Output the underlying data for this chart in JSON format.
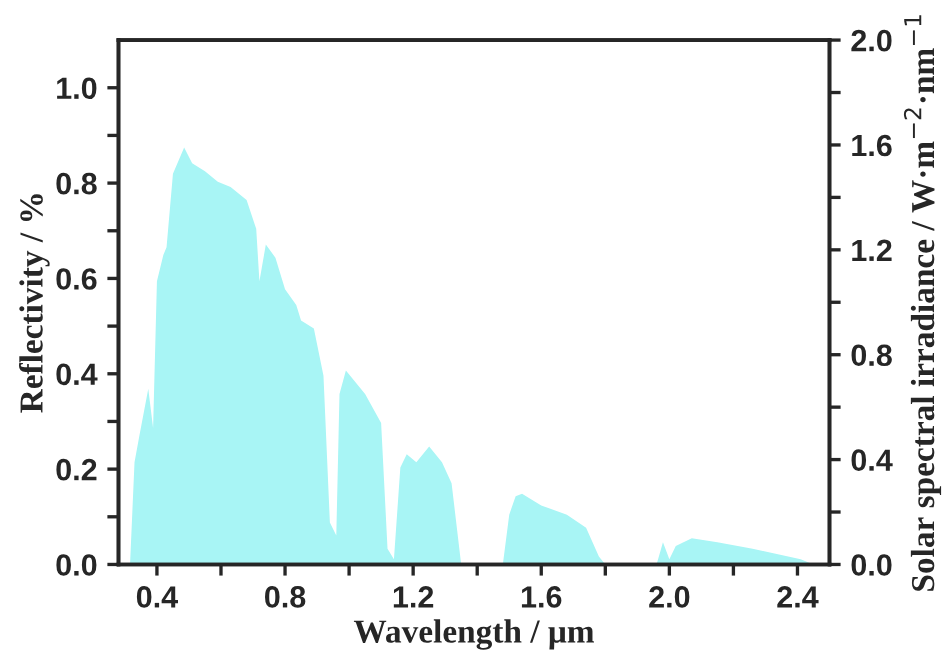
{
  "chart_data": {
    "type": "area",
    "xlabel": "Wavelength / μm",
    "ylabel": "Reflectivity / %",
    "y2label": "Solar spectral irradiance / W·m$^{−2}$·nm$^{−1}$",
    "xlim": [
      0.28,
      2.5
    ],
    "xticks": [
      0.4,
      {
        "value": 0.6,
        "label": null
      },
      0.8,
      {
        "value": 1.0,
        "label": null
      },
      1.2,
      {
        "value": 1.4,
        "label": null
      },
      1.6,
      {
        "value": 1.8,
        "label": null
      },
      {
        "value": 2.0,
        "label": "2.0"
      },
      {
        "value": 2.2,
        "label": null
      },
      2.4
    ],
    "ylim": [
      0,
      1.1
    ],
    "yticks": [
      {
        "value": 0,
        "label": "0.0"
      },
      {
        "value": 0.1,
        "label": null
      },
      0.2,
      {
        "value": 0.3,
        "label": null
      },
      0.4,
      {
        "value": 0.5,
        "label": null
      },
      0.6,
      {
        "value": 0.7,
        "label": null
      },
      0.8,
      {
        "value": 0.9,
        "label": null
      },
      {
        "value": 1,
        "label": "1.0"
      }
    ],
    "y2lim": [
      0,
      2.0
    ],
    "y2ticks": [
      {
        "value": 0,
        "label": "0.0"
      },
      {
        "value": 0.2,
        "label": null
      },
      0.4,
      {
        "value": 0.6,
        "label": null
      },
      0.8,
      {
        "value": 1.0,
        "label": null
      },
      1.2,
      {
        "value": 1.4,
        "label": null
      },
      1.6,
      {
        "value": 1.8,
        "label": null
      },
      {
        "value": 2,
        "label": "2.0"
      }
    ],
    "grid": false,
    "legend": false,
    "series": [
      {
        "color": "#a8f5f5",
        "axis": "y2",
        "x": [
          0.316,
          0.33,
          0.345,
          0.373,
          0.388,
          0.4,
          0.42,
          0.43,
          0.45,
          0.485,
          0.51,
          0.55,
          0.59,
          0.63,
          0.68,
          0.71,
          0.72,
          0.74,
          0.77,
          0.8,
          0.835,
          0.85,
          0.89,
          0.92,
          0.94,
          0.96,
          0.97,
          0.99,
          1.05,
          1.1,
          1.12,
          1.14,
          1.16,
          1.18,
          1.21,
          1.25,
          1.29,
          1.32,
          1.35,
          1.48,
          1.5,
          1.52,
          1.54,
          1.6,
          1.68,
          1.74,
          1.78,
          1.8,
          1.96,
          1.98,
          2.0,
          2.02,
          2.07,
          2.15,
          2.26,
          2.41,
          2.45
        ],
        "values": [
          0,
          0.39,
          0.49,
          0.67,
          0.52,
          1.08,
          1.18,
          1.21,
          1.49,
          1.59,
          1.53,
          1.5,
          1.46,
          1.44,
          1.39,
          1.28,
          1.08,
          1.22,
          1.17,
          1.05,
          0.99,
          0.93,
          0.9,
          0.72,
          0.16,
          0.11,
          0.65,
          0.74,
          0.65,
          0.54,
          0.06,
          0.02,
          0.37,
          0.42,
          0.39,
          0.45,
          0.39,
          0.31,
          0,
          0,
          0.19,
          0.26,
          0.27,
          0.225,
          0.19,
          0.14,
          0.03,
          0,
          0,
          0.085,
          0.02,
          0.07,
          0.1,
          0.085,
          0.06,
          0.02,
          0
        ]
      }
    ]
  }
}
